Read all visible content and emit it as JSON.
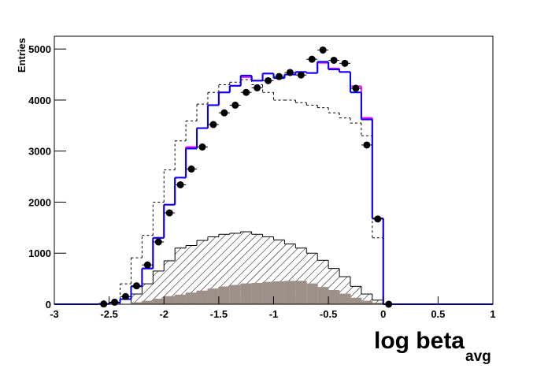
{
  "chart_data": {
    "type": "histogram",
    "x_label": "log beta",
    "x_label_subscript": "avg",
    "y_label": "Entries",
    "xlim": [
      -3,
      1
    ],
    "ylim": [
      0,
      5250
    ],
    "xticks": [
      -3,
      -2.5,
      -2,
      -1.5,
      -1,
      -0.5,
      0,
      0.5,
      1
    ],
    "yticks": [
      0,
      1000,
      2000,
      3000,
      4000,
      5000
    ],
    "bins": [
      -3,
      -2.9,
      -2.8,
      -2.7,
      -2.6,
      -2.5,
      -2.4,
      -2.3,
      -2.2,
      -2.1,
      -2,
      -1.9,
      -1.8,
      -1.7,
      -1.6,
      -1.5,
      -1.4,
      -1.3,
      -1.2,
      -1.1,
      -1,
      -0.9,
      -0.8,
      -0.7,
      -0.6,
      -0.5,
      -0.4,
      -0.3,
      -0.2,
      -0.1,
      0,
      0.1,
      0.2,
      0.3,
      0.4,
      0.5,
      0.6,
      0.7,
      0.8,
      0.9,
      1
    ],
    "series": [
      {
        "style": "dashed",
        "color": "#000000",
        "values": [
          0,
          0,
          0,
          0,
          0,
          0,
          400,
          910,
          1350,
          2000,
          2630,
          3200,
          3590,
          3920,
          4150,
          4300,
          4350,
          4400,
          4300,
          4150,
          4000,
          4000,
          3950,
          3900,
          3850,
          3750,
          3650,
          3550,
          3300,
          1300,
          0,
          0,
          0,
          0,
          0,
          0,
          0,
          0,
          0,
          0
        ]
      },
      {
        "style": "hatched",
        "color": "#000000",
        "values": [
          0,
          0,
          0,
          0,
          0,
          0,
          0,
          200,
          400,
          650,
          850,
          1100,
          1150,
          1250,
          1320,
          1370,
          1390,
          1420,
          1370,
          1320,
          1260,
          1180,
          1100,
          1000,
          860,
          700,
          540,
          350,
          200,
          80,
          0,
          0,
          0,
          0,
          0,
          0,
          0,
          0,
          0,
          0
        ]
      },
      {
        "style": "filled",
        "color": "#9c9089",
        "values": [
          0,
          0,
          0,
          0,
          0,
          0,
          0,
          30,
          60,
          100,
          150,
          180,
          220,
          260,
          300,
          340,
          370,
          400,
          410,
          430,
          440,
          450,
          450,
          400,
          330,
          270,
          200,
          120,
          60,
          20,
          0,
          0,
          0,
          0,
          0,
          0,
          0,
          0,
          0,
          0
        ]
      },
      {
        "style": "step",
        "color": "#ff00ff",
        "values": [
          0,
          0,
          0,
          0,
          5,
          30,
          100,
          350,
          700,
          1300,
          1950,
          2480,
          3080,
          3450,
          3900,
          4150,
          4280,
          4450,
          4380,
          4520,
          4430,
          4500,
          4550,
          4530,
          4730,
          4620,
          4550,
          4270,
          3650,
          1680,
          0,
          0,
          0,
          0,
          0,
          0,
          0,
          0,
          0,
          0
        ]
      },
      {
        "style": "step",
        "color": "#0000ff",
        "values": [
          0,
          0,
          0,
          0,
          5,
          30,
          100,
          350,
          700,
          1300,
          1950,
          2480,
          3050,
          3450,
          3900,
          4150,
          4280,
          4480,
          4380,
          4520,
          4430,
          4500,
          4550,
          4530,
          4750,
          4600,
          4550,
          4150,
          3620,
          1680,
          0,
          0,
          0,
          0,
          0,
          0,
          0,
          0,
          0,
          0
        ]
      },
      {
        "style": "points",
        "color": "#000000",
        "values": [
          null,
          null,
          null,
          null,
          5,
          40,
          150,
          360,
          770,
          1220,
          1790,
          2340,
          2650,
          3080,
          3520,
          3750,
          3900,
          4150,
          4240,
          4380,
          4460,
          4540,
          4490,
          4800,
          4980,
          4780,
          4720,
          4230,
          3120,
          1670,
          0,
          null,
          null,
          null,
          null,
          null,
          null,
          null,
          null,
          null
        ]
      }
    ]
  }
}
